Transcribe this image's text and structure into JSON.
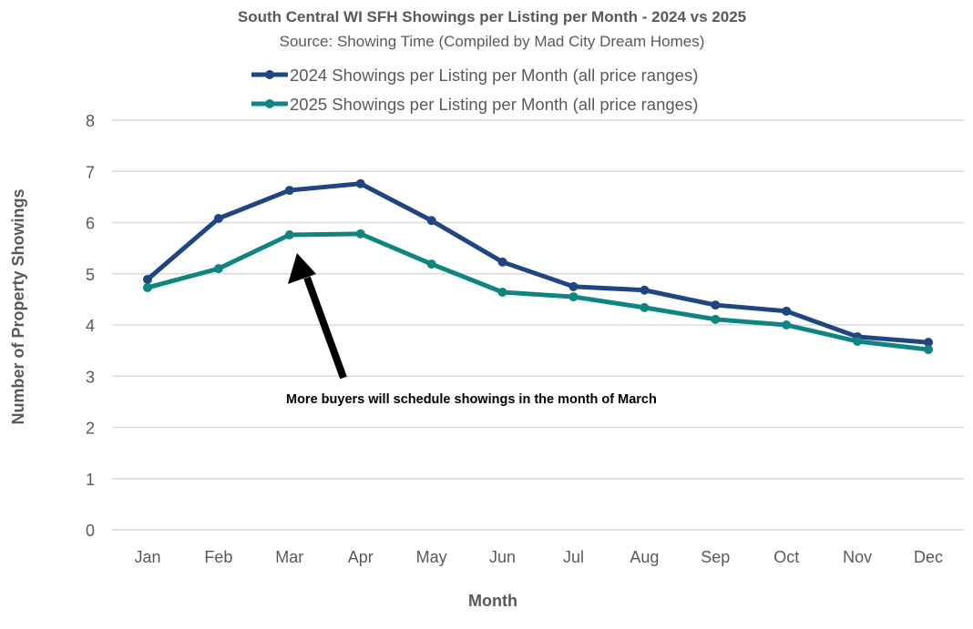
{
  "chart_data": {
    "type": "line",
    "title": "South Central WI SFH Showings per Listing per Month - 2024 vs 2025",
    "subtitle": "Source: Showing Time (Compiled by Mad City Dream Homes)",
    "xlabel": "Month",
    "ylabel": "Number of Property Showings",
    "ylim": [
      0,
      8
    ],
    "yticks": [
      0,
      1,
      2,
      3,
      4,
      5,
      6,
      7,
      8
    ],
    "grid": true,
    "legend_position": "top",
    "categories": [
      "Jan",
      "Feb",
      "Mar",
      "Apr",
      "May",
      "Jun",
      "Jul",
      "Aug",
      "Sep",
      "Oct",
      "Nov",
      "Dec"
    ],
    "series": [
      {
        "name": "2024 Showings per Listing per Month (all price ranges)",
        "color": "#1f4680",
        "values": [
          4.89,
          6.08,
          6.63,
          6.76,
          6.04,
          5.23,
          4.75,
          4.68,
          4.39,
          4.27,
          3.77,
          3.66
        ]
      },
      {
        "name": "2025 Showings per Listing per Month (all price ranges)",
        "color": "#0e8580",
        "values": [
          4.73,
          5.1,
          5.76,
          5.78,
          5.19,
          4.64,
          4.55,
          4.34,
          4.11,
          4.0,
          3.68,
          3.52
        ]
      }
    ],
    "annotation": {
      "text": "More buyers will schedule showings in the month of March",
      "points_to": "Mar"
    }
  }
}
